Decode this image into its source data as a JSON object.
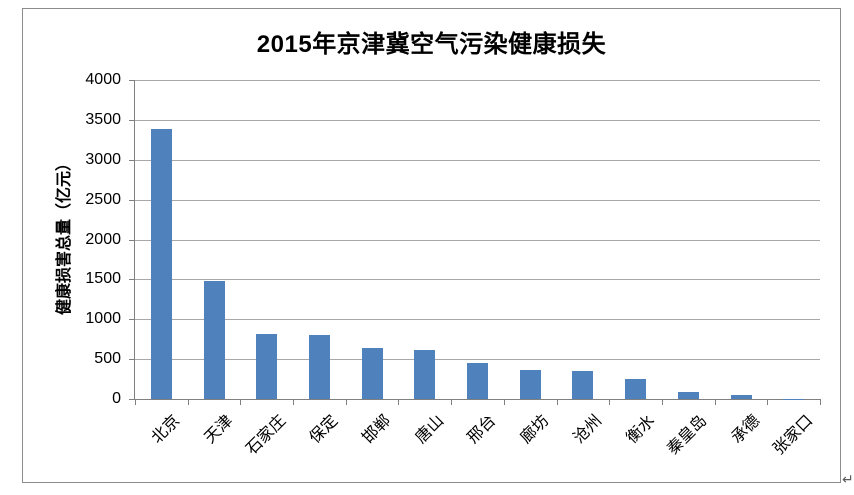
{
  "page": {
    "return_mark": "↵"
  },
  "chart_data": {
    "type": "bar",
    "title": "2015年京津冀空气污染健康损失",
    "xlabel": "",
    "ylabel": "健康损害总量（亿元）",
    "categories": [
      "北京",
      "天津",
      "石家庄",
      "保定",
      "邯郸",
      "唐山",
      "邢台",
      "廊坊",
      "沧州",
      "衡水",
      "秦皇岛",
      "承德",
      "张家口"
    ],
    "values": [
      3380,
      1480,
      820,
      805,
      645,
      610,
      450,
      370,
      350,
      255,
      90,
      50,
      5
    ],
    "ylim": [
      0,
      4000
    ],
    "yticks": [
      0,
      500,
      1000,
      1500,
      2000,
      2500,
      3000,
      3500,
      4000
    ],
    "grid": true,
    "legend": false,
    "bar_color": "#4F81BD",
    "gridline_color": "#A8A8A8",
    "axis_color": "#808080",
    "frame_border_color": "#8C8C8C"
  }
}
